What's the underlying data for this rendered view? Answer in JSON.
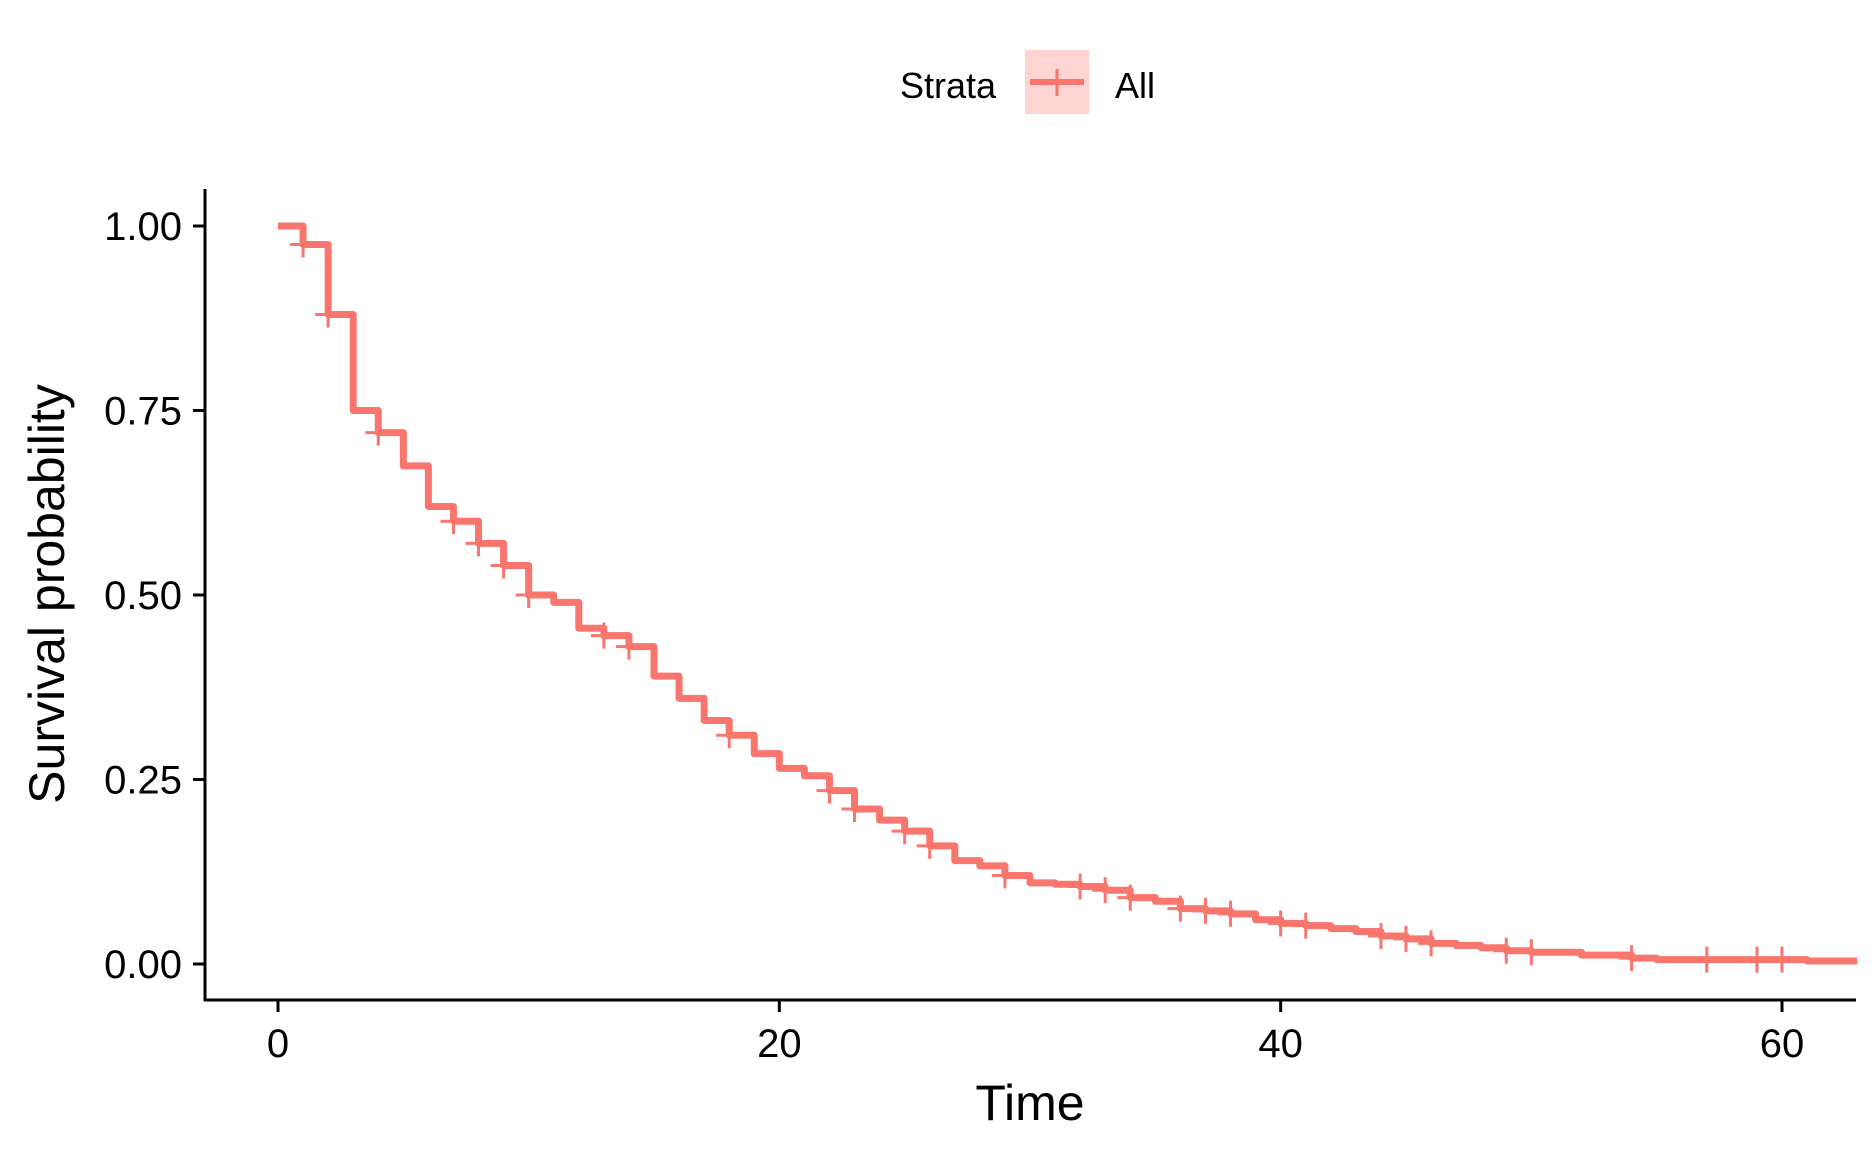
{
  "chart_data": {
    "type": "line",
    "subtype": "kaplan-meier-step",
    "title": "",
    "xlabel": "Time",
    "ylabel": "Survival probability",
    "xlim": [
      -3,
      63
    ],
    "ylim": [
      -0.05,
      1.05
    ],
    "x_ticks": [
      0,
      20,
      40,
      60
    ],
    "x_tick_labels": [
      "0",
      "20",
      "40",
      "60"
    ],
    "y_ticks": [
      0,
      0.25,
      0.5,
      0.75,
      1.0
    ],
    "y_tick_labels": [
      "0.00",
      "0.25",
      "0.50",
      "0.75",
      "1.00"
    ],
    "grid": false,
    "legend": {
      "title": "Strata",
      "placement": "top",
      "entries": [
        "All"
      ]
    },
    "series": [
      {
        "name": "All",
        "color": "#F8766D",
        "step_x": [
          0,
          1,
          2,
          3,
          4,
          5,
          6,
          7,
          8,
          9,
          10,
          11,
          12,
          13,
          14,
          15,
          16,
          17,
          18,
          19,
          20,
          21,
          22,
          23,
          24,
          25,
          26,
          27,
          28,
          29,
          30,
          31,
          32,
          33,
          34,
          35,
          36,
          37,
          38,
          39,
          40,
          41,
          42,
          43,
          44,
          45,
          46,
          47,
          48,
          49,
          50,
          52,
          54,
          55,
          61,
          63
        ],
        "step_y": [
          1.0,
          0.975,
          0.88,
          0.75,
          0.72,
          0.675,
          0.62,
          0.6,
          0.57,
          0.54,
          0.5,
          0.49,
          0.455,
          0.445,
          0.43,
          0.39,
          0.36,
          0.33,
          0.31,
          0.285,
          0.265,
          0.255,
          0.235,
          0.21,
          0.195,
          0.18,
          0.16,
          0.14,
          0.133,
          0.12,
          0.11,
          0.108,
          0.105,
          0.1,
          0.09,
          0.085,
          0.075,
          0.072,
          0.068,
          0.06,
          0.055,
          0.052,
          0.048,
          0.044,
          0.038,
          0.034,
          0.028,
          0.025,
          0.022,
          0.018,
          0.016,
          0.012,
          0.008,
          0.006,
          0.004,
          0.004
        ],
        "censor_x": [
          1,
          2,
          4,
          7,
          8,
          9,
          10,
          13,
          14,
          18,
          22,
          23,
          25,
          26,
          29,
          32,
          33,
          34,
          36,
          37,
          38,
          40,
          41,
          44,
          45,
          46,
          49,
          50,
          54,
          57,
          59,
          60
        ]
      }
    ]
  }
}
